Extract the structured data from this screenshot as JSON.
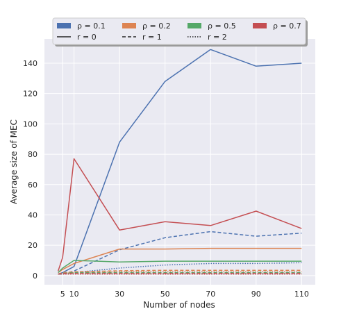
{
  "chart_data": {
    "type": "line",
    "xlabel": "Number of nodes",
    "ylabel": "Average size of MEC",
    "x": [
      3,
      5,
      10,
      30,
      50,
      70,
      90,
      110
    ],
    "xticks": [
      5,
      10,
      30,
      50,
      70,
      90,
      110
    ],
    "xtick_labels": [
      "5",
      "10",
      "30",
      "50",
      "70",
      "90",
      "110"
    ],
    "yticks": [
      0,
      20,
      40,
      60,
      80,
      100,
      120,
      140
    ],
    "ytick_labels": [
      "0",
      "20",
      "40",
      "60",
      "80",
      "100",
      "120",
      "140"
    ],
    "xlim": [
      -3,
      116
    ],
    "ylim": [
      -6,
      156
    ],
    "grid": true,
    "legend_position": "top",
    "colors": {
      "background": "#eaeaf2",
      "grid": "#ffffff",
      "rho_0.1": "#4c72b0",
      "rho_0.2": "#dd8452",
      "rho_0.5": "#55a868",
      "rho_0.7": "#c44e52",
      "text": "#262626"
    },
    "legend": {
      "rho_entries": [
        {
          "label": "ρ = 0.1",
          "color_key": "rho_0.1"
        },
        {
          "label": "ρ = 0.2",
          "color_key": "rho_0.2"
        },
        {
          "label": "ρ = 0.5",
          "color_key": "rho_0.5"
        },
        {
          "label": "ρ = 0.7",
          "color_key": "rho_0.7"
        }
      ],
      "r_entries": [
        {
          "label": "r = 0",
          "style": "solid"
        },
        {
          "label": "r = 1",
          "style": "dashed"
        },
        {
          "label": "r = 2",
          "style": "dotted"
        }
      ]
    },
    "series": [
      {
        "rho": "0.1",
        "r": 0,
        "color_key": "rho_0.1",
        "style": "solid",
        "values": [
          1,
          2,
          6,
          88,
          128,
          149,
          138,
          140
        ]
      },
      {
        "rho": "0.1",
        "r": 1,
        "color_key": "rho_0.1",
        "style": "dashed",
        "values": [
          1,
          1,
          3,
          17,
          25,
          29,
          26,
          28
        ]
      },
      {
        "rho": "0.1",
        "r": 2,
        "color_key": "rho_0.1",
        "style": "dotted",
        "values": [
          1,
          1,
          2,
          5,
          7,
          8,
          8,
          8.5
        ]
      },
      {
        "rho": "0.2",
        "r": 0,
        "color_key": "rho_0.2",
        "style": "solid",
        "values": [
          2,
          4,
          8,
          17.5,
          17.5,
          18,
          18,
          18
        ]
      },
      {
        "rho": "0.2",
        "r": 1,
        "color_key": "rho_0.2",
        "style": "dashed",
        "values": [
          1,
          2,
          2.5,
          3.2,
          3.5,
          3.5,
          3.5,
          3.5
        ]
      },
      {
        "rho": "0.2",
        "r": 2,
        "color_key": "rho_0.2",
        "style": "dotted",
        "values": [
          1,
          1.5,
          2,
          2.5,
          2.5,
          2.5,
          2.5,
          2.5
        ]
      },
      {
        "rho": "0.5",
        "r": 0,
        "color_key": "rho_0.5",
        "style": "solid",
        "values": [
          2,
          5,
          10,
          9,
          9.5,
          9.5,
          9.5,
          9.5
        ]
      },
      {
        "rho": "0.5",
        "r": 1,
        "color_key": "rho_0.5",
        "style": "dashed",
        "values": [
          1,
          1.5,
          2,
          2,
          2,
          2,
          2,
          2
        ]
      },
      {
        "rho": "0.5",
        "r": 2,
        "color_key": "rho_0.5",
        "style": "dotted",
        "values": [
          1,
          1.2,
          1.5,
          1.5,
          1.5,
          1.5,
          1.5,
          1.5
        ]
      },
      {
        "rho": "0.7",
        "r": 0,
        "color_key": "rho_0.7",
        "style": "solid",
        "values": [
          3,
          12,
          77,
          30,
          35.5,
          33,
          42.5,
          31
        ]
      },
      {
        "rho": "0.7",
        "r": 1,
        "color_key": "rho_0.7",
        "style": "dashed",
        "values": [
          1,
          1.5,
          1.5,
          1.5,
          1.5,
          1.5,
          1.5,
          1.5
        ]
      },
      {
        "rho": "0.7",
        "r": 2,
        "color_key": "rho_0.7",
        "style": "dotted",
        "values": [
          1,
          1,
          1,
          1,
          1,
          1,
          1,
          1
        ]
      }
    ]
  }
}
